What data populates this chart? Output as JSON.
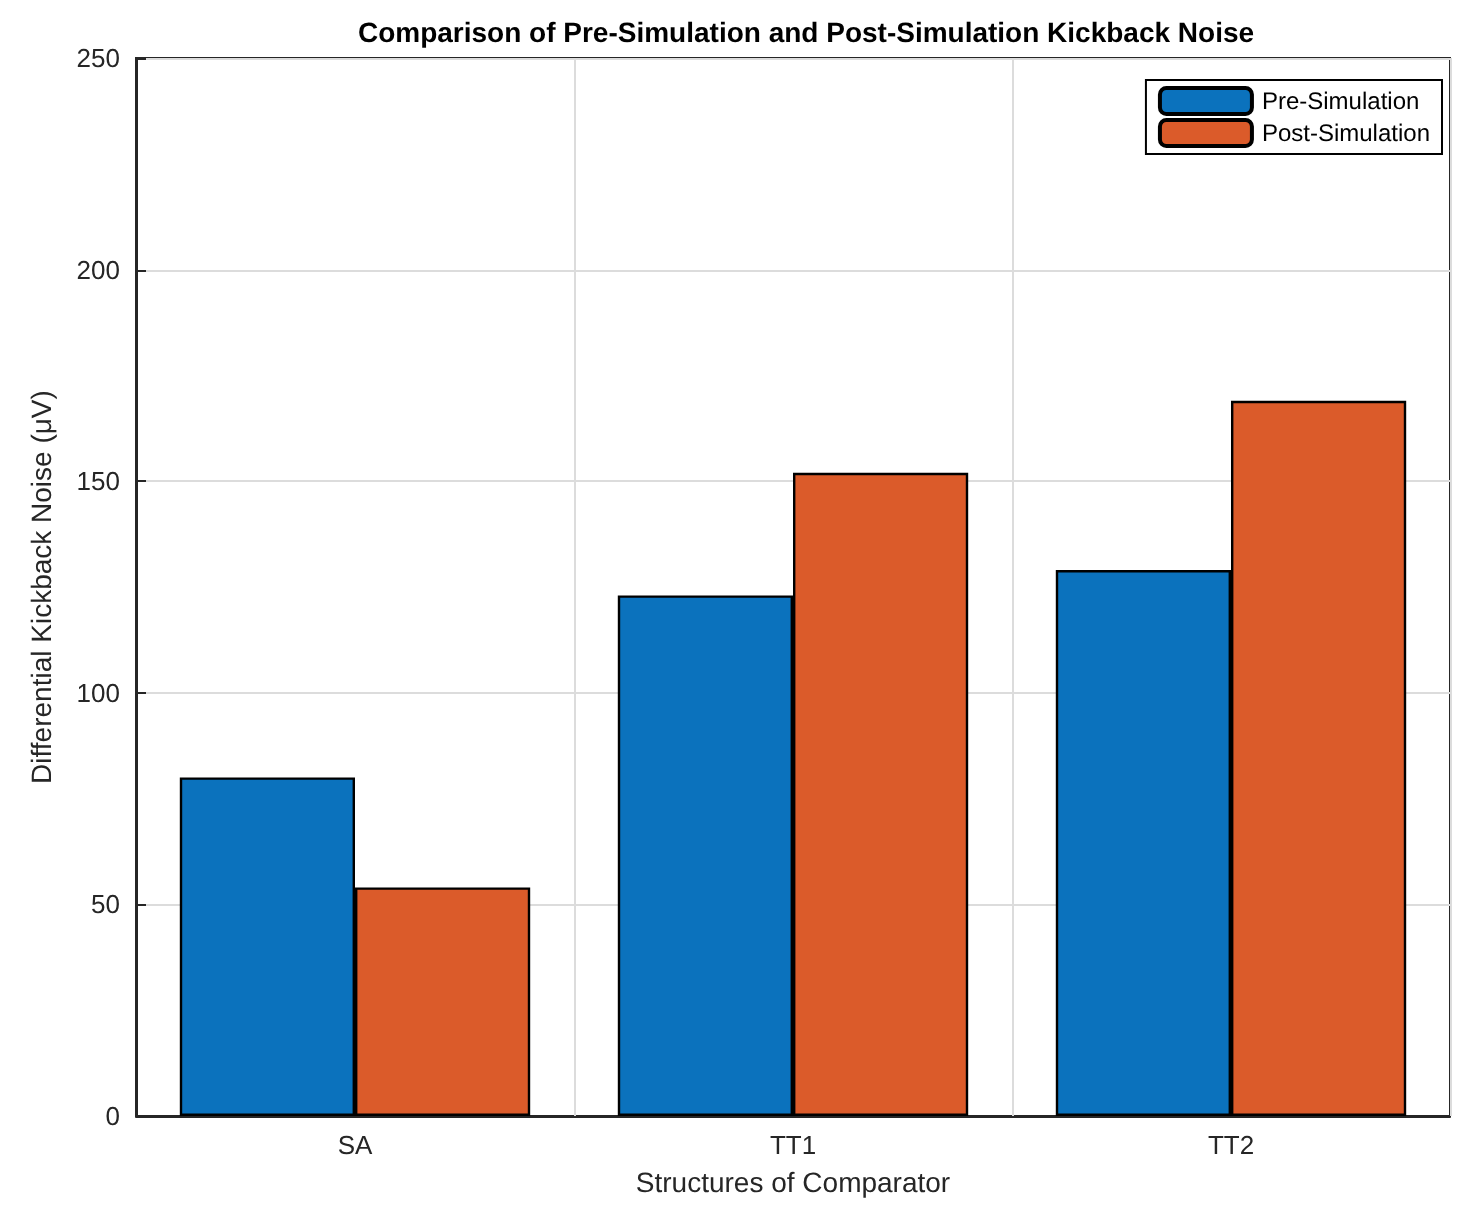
{
  "chart_data": {
    "type": "bar",
    "title": "Comparison of Pre-Simulation and Post-Simulation Kickback Noise",
    "xlabel": "Structures of Comparator",
    "ylabel": "Differential Kickback Noise (μV)",
    "categories": [
      "SA",
      "TT1",
      "TT2"
    ],
    "series": [
      {
        "name": "Pre-Simulation",
        "color": "#0b72bd",
        "values": [
          80,
          123,
          129
        ]
      },
      {
        "name": "Post-Simulation",
        "color": "#db5b2a",
        "values": [
          54,
          152,
          169
        ]
      }
    ],
    "ylim": [
      0,
      250
    ],
    "yticks": [
      0,
      50,
      100,
      150,
      200,
      250
    ],
    "grid": true,
    "legend": "top right"
  }
}
